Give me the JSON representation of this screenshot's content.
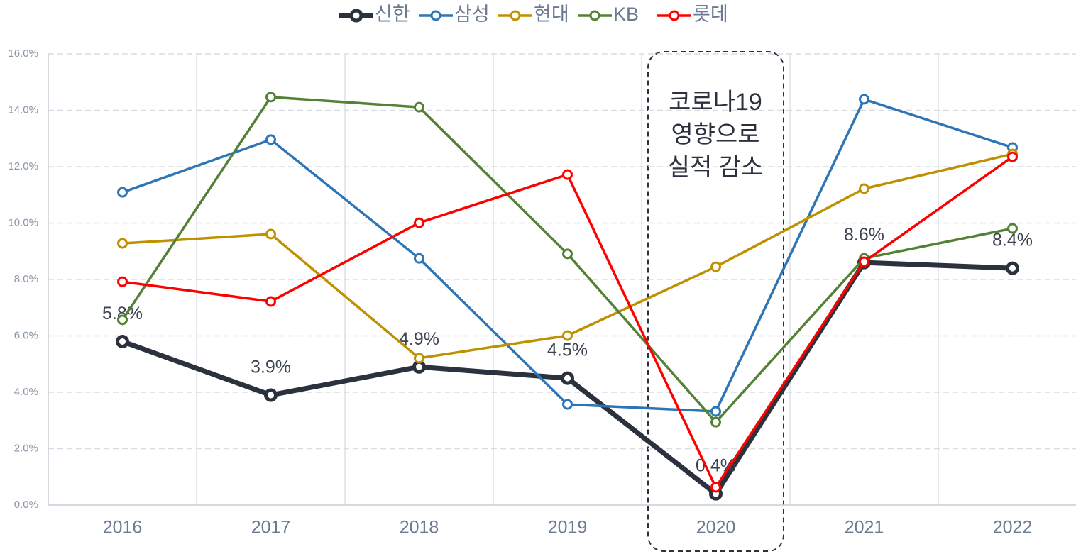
{
  "chart_data": {
    "type": "line",
    "categories": [
      "2016",
      "2017",
      "2018",
      "2019",
      "2020",
      "2021",
      "2022"
    ],
    "series": [
      {
        "name": "신한",
        "color": "#2b313d",
        "values": [
          5.8,
          3.9,
          4.9,
          4.5,
          0.4,
          8.6,
          8.4
        ],
        "value_labels": [
          "5.8%",
          "3.9%",
          "4.9%",
          "4.5%",
          "0.4%",
          "8.6%",
          "8.4%"
        ]
      },
      {
        "name": "삼성",
        "color": "#2e75b6",
        "values": [
          11.09,
          12.96,
          8.75,
          3.57,
          3.32,
          14.39,
          12.68
        ]
      },
      {
        "name": "현대",
        "color": "#bf9000",
        "values": [
          9.28,
          9.61,
          5.21,
          6.01,
          8.45,
          11.22,
          12.45
        ]
      },
      {
        "name": "KB",
        "color": "#538135",
        "values": [
          6.57,
          14.47,
          14.11,
          8.91,
          2.94,
          8.75,
          9.81
        ]
      },
      {
        "name": "롯데",
        "color": "#ff0000",
        "values": [
          7.92,
          7.22,
          10.01,
          11.72,
          0.63,
          8.63,
          12.35
        ]
      }
    ],
    "ylim": [
      0,
      16
    ],
    "yticks": [
      {
        "value": 0,
        "label": "0.0%"
      },
      {
        "value": 2,
        "label": "2.0%"
      },
      {
        "value": 4,
        "label": "4.0%"
      },
      {
        "value": 6,
        "label": "6.0%"
      },
      {
        "value": 8,
        "label": "8.0%"
      },
      {
        "value": 10,
        "label": "10.0%"
      },
      {
        "value": 12,
        "label": "12.0%"
      },
      {
        "value": 14,
        "label": "14.0%"
      },
      {
        "value": 16,
        "label": "16.0%"
      }
    ],
    "grid": true,
    "legend": "top",
    "annotation": [
      "코로나19",
      "영향으로",
      "실적 감소"
    ]
  }
}
